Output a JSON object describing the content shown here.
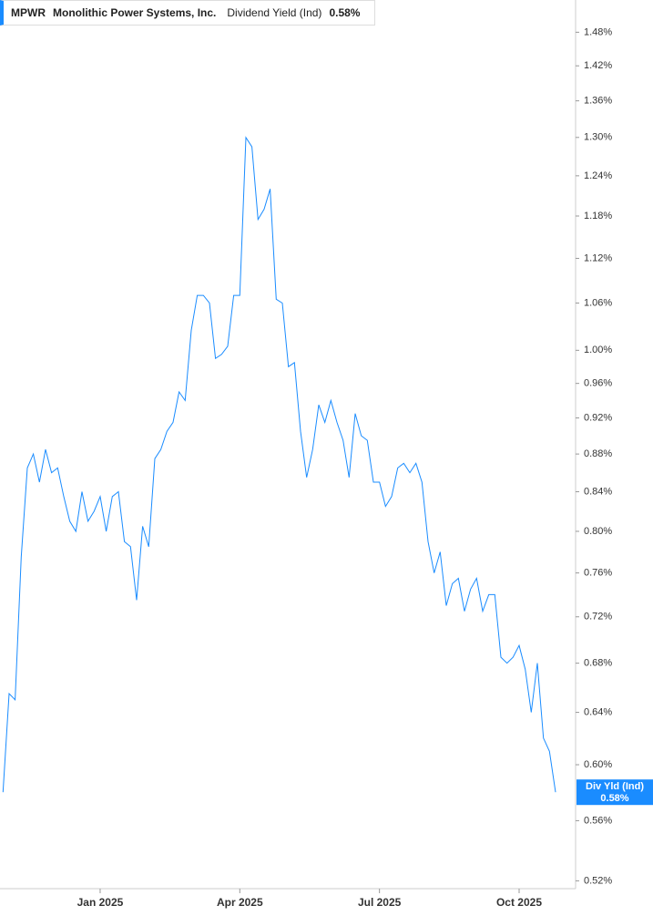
{
  "chart_data": {
    "type": "line",
    "ticker": "MPWR",
    "company": "Monolithic Power Systems, Inc.",
    "axis_tag": "Div Yld (Ind)",
    "last_value": 0.58,
    "last_value_label": "0.58%",
    "log_scale": true,
    "grid": false,
    "categories": [
      null,
      null,
      null,
      null,
      null,
      null,
      null,
      null,
      null,
      null,
      null,
      null,
      null,
      null,
      null,
      null,
      "Jan 2025",
      null,
      null,
      null,
      null,
      null,
      null,
      null,
      null,
      null,
      null,
      null,
      null,
      null,
      null,
      null,
      null,
      null,
      null,
      null,
      null,
      null,
      null,
      "Apr 2025",
      null,
      null,
      null,
      null,
      null,
      null,
      null,
      null,
      null,
      null,
      null,
      null,
      null,
      null,
      null,
      null,
      null,
      null,
      null,
      null,
      null,
      null,
      "Jul 2025",
      null,
      null,
      null,
      null,
      null,
      null,
      null,
      null,
      null,
      null,
      null,
      null,
      null,
      null,
      null,
      null,
      null,
      null,
      null,
      null,
      null,
      null,
      "Oct 2025",
      null,
      null,
      null,
      null,
      null,
      null
    ],
    "series": [
      {
        "name": "Dividend Yield (Ind)",
        "color": "#1a8cff",
        "values": [
          0.58,
          0.655,
          0.65,
          0.775,
          0.865,
          0.88,
          0.85,
          0.885,
          0.86,
          0.865,
          0.835,
          0.81,
          0.8,
          0.84,
          0.81,
          0.82,
          0.835,
          0.8,
          0.835,
          0.84,
          0.79,
          0.785,
          0.735,
          0.805,
          0.785,
          0.875,
          0.885,
          0.905,
          0.915,
          0.95,
          0.94,
          1.025,
          1.07,
          1.07,
          1.06,
          0.99,
          0.995,
          1.005,
          1.07,
          1.07,
          1.3,
          1.285,
          1.175,
          1.19,
          1.22,
          1.065,
          1.06,
          0.98,
          0.985,
          0.905,
          0.855,
          0.885,
          0.935,
          0.915,
          0.94,
          0.915,
          0.895,
          0.855,
          0.925,
          0.9,
          0.895,
          0.85,
          0.85,
          0.825,
          0.835,
          0.865,
          0.87,
          0.86,
          0.87,
          0.85,
          0.79,
          0.76,
          0.78,
          0.73,
          0.75,
          0.755,
          0.725,
          0.745,
          0.755,
          0.725,
          0.74,
          0.74,
          0.685,
          0.68,
          0.685,
          0.695,
          0.675,
          0.64,
          0.68,
          0.62,
          0.61,
          0.58
        ]
      }
    ],
    "ylim": [
      0.515,
      1.54
    ],
    "yticks": [
      {
        "value": 0.52,
        "label": "0.52%"
      },
      {
        "value": 0.56,
        "label": "0.56%"
      },
      {
        "value": 0.6,
        "label": "0.60%"
      },
      {
        "value": 0.64,
        "label": "0.64%"
      },
      {
        "value": 0.68,
        "label": "0.68%"
      },
      {
        "value": 0.72,
        "label": "0.72%"
      },
      {
        "value": 0.76,
        "label": "0.76%"
      },
      {
        "value": 0.8,
        "label": "0.80%"
      },
      {
        "value": 0.84,
        "label": "0.84%"
      },
      {
        "value": 0.88,
        "label": "0.88%"
      },
      {
        "value": 0.92,
        "label": "0.92%"
      },
      {
        "value": 0.96,
        "label": "0.96%"
      },
      {
        "value": 1.0,
        "label": "1.00%"
      },
      {
        "value": 1.06,
        "label": "1.06%"
      },
      {
        "value": 1.12,
        "label": "1.12%"
      },
      {
        "value": 1.18,
        "label": "1.18%"
      },
      {
        "value": 1.24,
        "label": "1.24%"
      },
      {
        "value": 1.3,
        "label": "1.30%"
      },
      {
        "value": 1.36,
        "label": "1.36%"
      },
      {
        "value": 1.42,
        "label": "1.42%"
      },
      {
        "value": 1.48,
        "label": "1.48%"
      }
    ]
  }
}
